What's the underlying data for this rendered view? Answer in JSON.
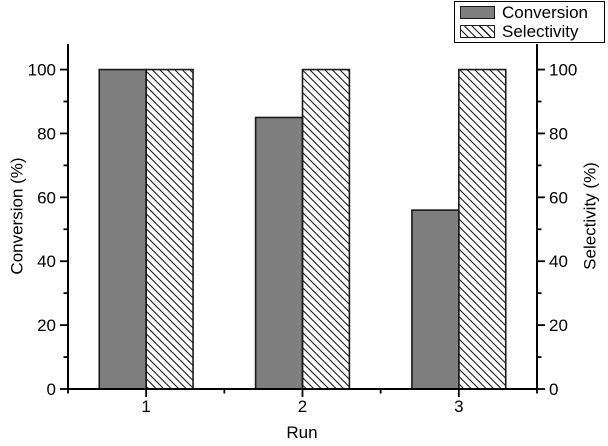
{
  "chart_data": {
    "type": "bar",
    "categories": [
      "1",
      "2",
      "3"
    ],
    "x_positions": [
      1,
      2,
      3
    ],
    "series": [
      {
        "name": "Conversion",
        "values": [
          100,
          85,
          56
        ],
        "axis": "left",
        "fill": "#7f7f7f",
        "pattern": "solid"
      },
      {
        "name": "Selectivity",
        "values": [
          100,
          100,
          100
        ],
        "axis": "right",
        "fill": "#ffffff",
        "pattern": "diagonal-hatch"
      }
    ],
    "title": "",
    "xlabel": "Run",
    "ylabel_left": "Conversion (%)",
    "ylabel_right": "Selectivity (%)",
    "xlim": [
      0.5,
      3.5
    ],
    "ylim": [
      0,
      108
    ],
    "yticks": [
      0,
      20,
      40,
      60,
      80,
      100
    ],
    "y_minor_ticks": [
      10,
      30,
      50,
      70,
      90
    ],
    "x_minor_ticks": [
      0.5,
      1.5,
      2.5,
      3.5
    ],
    "bar_width": 0.3,
    "grid": false,
    "legend_position": "top-right",
    "colors": {
      "bar_fill": "#7f7f7f",
      "bar_edge": "#1a1a1a",
      "hatch_line": "#1a1a1a",
      "axis": "#000000",
      "text": "#000000",
      "background": "#ffffff"
    }
  }
}
